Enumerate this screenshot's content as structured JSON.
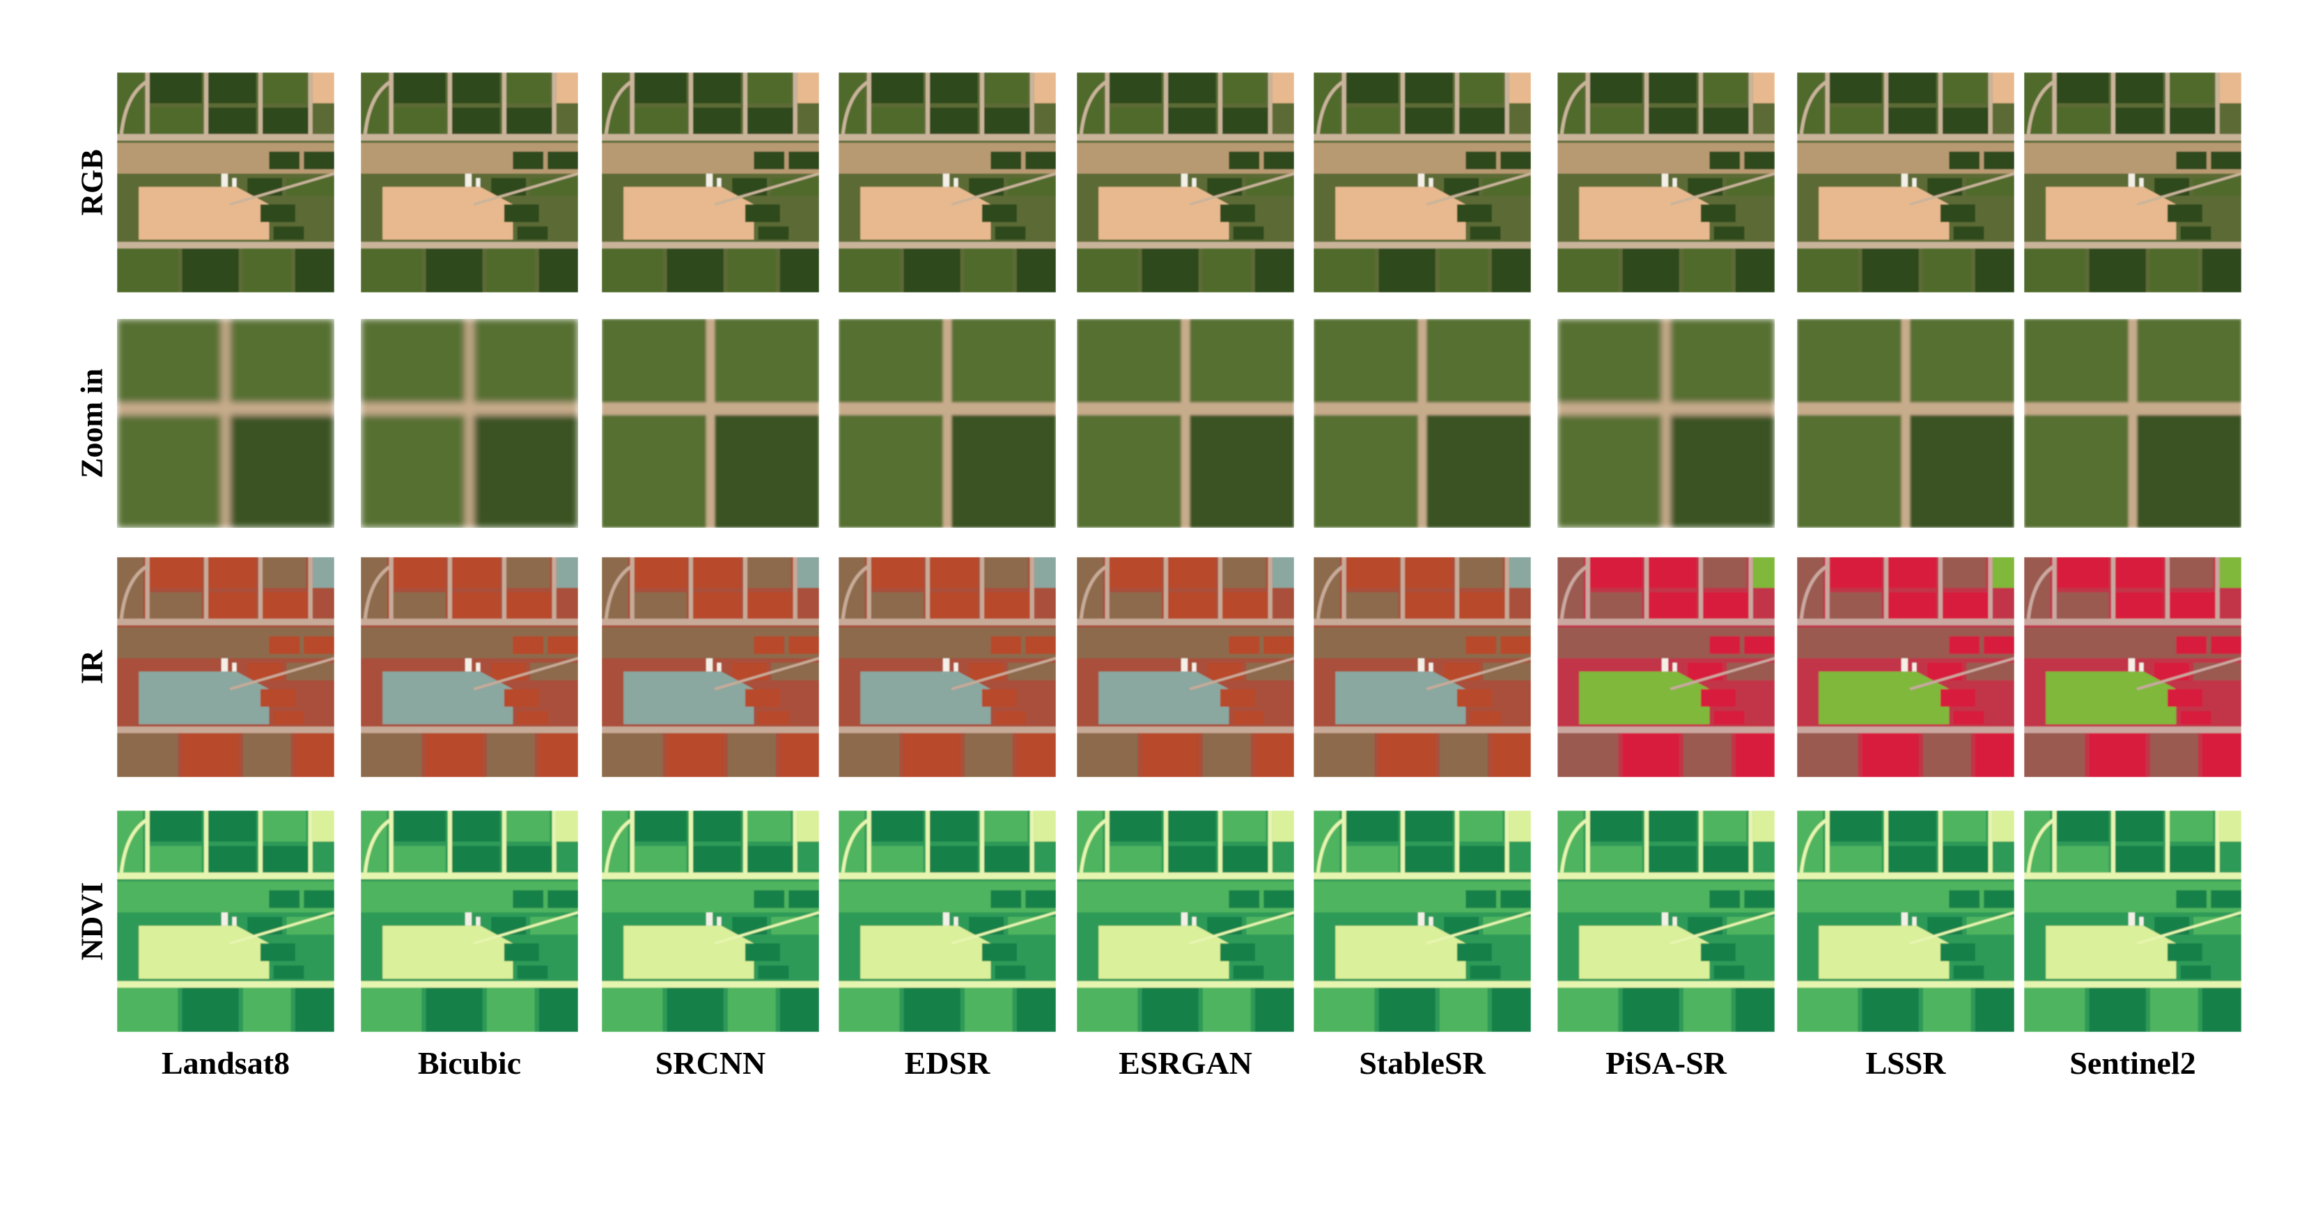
{
  "figure": {
    "rows": [
      {
        "key": "rgb",
        "label": "RGB"
      },
      {
        "key": "zoom",
        "label": "Zoom in"
      },
      {
        "key": "ir",
        "label": "IR"
      },
      {
        "key": "ndvi",
        "label": "NDVI"
      }
    ],
    "columns": [
      {
        "label": "Landsat8"
      },
      {
        "label": "Bicubic"
      },
      {
        "label": "SRCNN"
      },
      {
        "label": "EDSR"
      },
      {
        "label": "ESRGAN"
      },
      {
        "label": "StableSR"
      },
      {
        "label": "PiSA-SR"
      },
      {
        "label": "LSSR"
      },
      {
        "label": "Sentinel2"
      }
    ],
    "palettes": {
      "rgb": {
        "bg": "#5b6b34",
        "field_dark": "#2f4a1c",
        "field_mid": "#4f6a2c",
        "bare": "#b89a72",
        "bright": "#e8b98e",
        "road": "#c9b49a"
      },
      "zoom": {
        "bg": "#4a6228",
        "field_dark": "#3a5220",
        "field_mid": "#566f30",
        "road": "#c7ac8c"
      },
      "ir": {
        "bg": "#a9503a",
        "field_red": "#b8482c",
        "field_mid": "#8c6a4c",
        "pale": "#8aa7a0",
        "road": "#c8aa98"
      },
      "ir_false": {
        "bg": "#c23548",
        "field_red": "#d81e3c",
        "field_mid": "#9a5a50",
        "pale": "#7fb83a",
        "road": "#caa8a0"
      },
      "ndvi": {
        "bg": "#2e9a58",
        "field_dark": "#17804a",
        "field_mid": "#4fb45e",
        "pale": "#dbf09a",
        "road": "#e6f5b0"
      }
    }
  }
}
